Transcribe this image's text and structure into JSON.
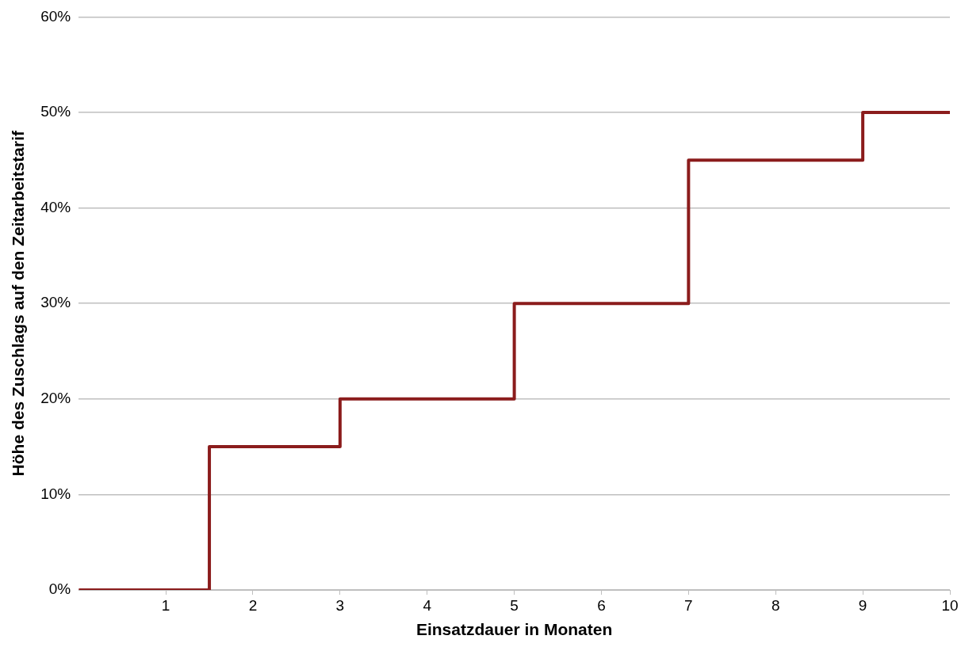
{
  "chart_data": {
    "type": "step",
    "xlabel": "Einsatzdauer in Monaten",
    "ylabel": "Höhe des Zuschlags auf den Zeitarbeitstarif",
    "x": [
      0,
      1.5,
      3,
      5,
      7,
      9,
      10
    ],
    "series": [
      {
        "color": "#8b1c1c",
        "values": [
          0,
          15,
          20,
          30,
          45,
          50,
          50
        ]
      }
    ],
    "xlim": [
      0,
      10
    ],
    "xticks": [
      1,
      2,
      3,
      4,
      5,
      6,
      7,
      8,
      9,
      10
    ],
    "ylim": [
      0,
      60
    ],
    "yticks": [
      {
        "value": 0,
        "label": "0%"
      },
      {
        "value": 10,
        "label": "10%"
      },
      {
        "value": 20,
        "label": "20%"
      },
      {
        "value": 30,
        "label": "30%"
      },
      {
        "value": 40,
        "label": "40%"
      },
      {
        "value": 50,
        "label": "50%"
      },
      {
        "value": 60,
        "label": "60%"
      }
    ],
    "grid": "y",
    "legend": false,
    "marker": "none",
    "line_style": "solid"
  }
}
